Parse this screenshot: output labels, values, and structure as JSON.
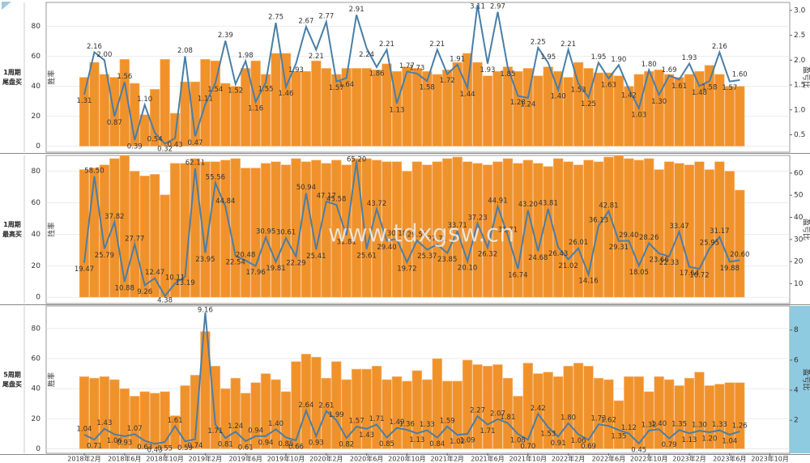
{
  "watermark": "www.tdxgsw.cn",
  "chart_data": [
    {
      "type": "bar",
      "panel_label": [
        "1周期",
        "尾盘买"
      ],
      "ylabel": "胜率",
      "y2label": "盈亏比",
      "ylim": [
        -4,
        96
      ],
      "yticks": [
        0,
        20,
        40,
        60,
        80
      ],
      "y2lim": [
        0.15,
        3.16
      ],
      "y2ticks": [
        0.5,
        {
          "value": 1,
          "label": "1.0"
        },
        1.5,
        {
          "value": 2,
          "label": "2.0"
        },
        2.5,
        {
          "value": 3,
          "label": "3.0"
        }
      ],
      "grid": true,
      "series": [
        {
          "color": "#f0922b",
          "values": [
            46,
            56,
            48,
            46,
            58,
            42,
            21,
            38,
            58,
            22,
            43,
            43,
            58,
            57,
            42,
            40,
            52,
            57,
            48,
            62,
            62,
            50,
            50,
            57,
            52,
            48,
            52,
            52,
            52,
            51,
            55,
            50,
            53,
            52,
            50,
            48,
            51,
            56,
            62,
            56,
            47,
            50,
            53,
            50,
            52,
            47,
            53,
            50,
            46,
            56,
            52,
            49,
            49,
            47,
            40,
            48,
            50,
            51,
            48,
            46,
            48,
            50,
            54,
            48,
            40,
            40
          ]
        },
        {
          "type": "line",
          "axis": "y2",
          "color": "#4a7ea6",
          "values": [
            1.31,
            2.16,
            2,
            0.87,
            1.56,
            0.39,
            1.1,
            0.54,
            0.32,
            0.43,
            2.08,
            0.47,
            1.11,
            1.54,
            2.39,
            1.52,
            1.98,
            1.16,
            1.55,
            2.75,
            1.46,
            1.93,
            2.67,
            2.21,
            2.77,
            1.57,
            1.64,
            2.91,
            2.24,
            1.86,
            2.21,
            1.13,
            1.77,
            1.73,
            1.58,
            2.21,
            1.72,
            1.91,
            1.44,
            3.11,
            1.93,
            2.97,
            1.85,
            1.28,
            1.24,
            2.25,
            1.95,
            1.4,
            2.21,
            1.53,
            1.25,
            1.95,
            1.63,
            1.9,
            1.42,
            1.03,
            1.8,
            1.3,
            1.69,
            1.61,
            1.93,
            1.48,
            1.58,
            2.16,
            1.57,
            1.6
          ],
          "value_labels": [
            "1.31",
            "2.16",
            "2.00",
            "0.87",
            "1.56",
            "0.39",
            "1.10",
            "0.54",
            "0.32",
            "0.43",
            "2.08",
            "0.47",
            "1.11",
            "1.54",
            "2.39",
            "1.52",
            "1.98",
            "1.16",
            "1.55",
            "2.75",
            "1.46",
            "1.93",
            "2.67",
            "2.21",
            "2.77",
            "1.57",
            "1.64",
            "2.91",
            "2.24",
            "1.86",
            "2.21",
            "1.13",
            "1.77",
            "1.73",
            "1.58",
            "2.21",
            "1.72",
            "1.91",
            "1.44",
            "3.11",
            "1.93",
            "2.97",
            "1.85",
            "1.28",
            "1.24",
            "2.25",
            "1.95",
            "1.40",
            "2.21",
            "1.53",
            "1.25",
            "1.95",
            "1.63",
            "1.90",
            "1.42",
            "1.03",
            "1.80",
            "1.30",
            "1.69",
            "1.61",
            "1.93",
            "1.48",
            "1.58",
            "2.16",
            "1.57",
            "1.60"
          ]
        }
      ]
    },
    {
      "type": "bar",
      "panel_label": [
        "1周期",
        "最高买"
      ],
      "ylabel": "胜率",
      "y2label": "盈亏比",
      "ylim": [
        -4,
        90
      ],
      "yticks": [
        0,
        20,
        40,
        60,
        80
      ],
      "y2lim": [
        1,
        68
      ],
      "y2ticks": [
        10,
        20,
        30,
        40,
        50,
        60
      ],
      "grid": true,
      "series": [
        {
          "color": "#f0922b",
          "values": [
            81,
            82,
            84,
            88,
            90,
            80,
            77,
            78,
            65,
            85,
            85,
            88,
            86,
            86,
            87,
            88,
            82,
            82,
            85,
            86,
            84,
            88,
            86,
            87,
            85,
            87,
            84,
            88,
            88,
            87,
            86,
            86,
            80,
            86,
            84,
            86,
            88,
            89,
            86,
            85,
            84,
            86,
            88,
            85,
            87,
            85,
            83,
            88,
            86,
            84,
            87,
            86,
            89,
            90,
            88,
            87,
            88,
            81,
            86,
            85,
            84,
            86,
            81,
            86,
            80,
            68
          ]
        },
        {
          "type": "line",
          "axis": "y2",
          "color": "#4a7ea6",
          "values": [
            19.47,
            58.5,
            25.79,
            37.82,
            10.88,
            27.77,
            9.26,
            12.47,
            4.38,
            10.11,
            13.19,
            62.11,
            23.95,
            55.56,
            44.84,
            22.54,
            20.48,
            17.96,
            30.95,
            19.81,
            30.61,
            22.29,
            50.94,
            25.41,
            47.17,
            45.58,
            31.81,
            65.2,
            25.61,
            43.72,
            29.4,
            30.18,
            19.72,
            29.51,
            25.37,
            27.71,
            23.85,
            33.71,
            20.1,
            37.23,
            26.32,
            44.91,
            31.71,
            16.74,
            43.2,
            24.68,
            43.81,
            26.43,
            21.02,
            26.01,
            14.16,
            36.13,
            42.81,
            29.31,
            29.4,
            18.05,
            28.26,
            23.66,
            22.33,
            33.47,
            17.64,
            16.72,
            25.95,
            31.17,
            19.88,
            20.6
          ],
          "value_labels": [
            "19.47",
            "58.50",
            "25.79",
            "37.82",
            "10.88",
            "27.77",
            "9.26",
            "12.47",
            "4.38",
            "10.11",
            "13.19",
            "62.11",
            "23.95",
            "55.56",
            "44.84",
            "22.54",
            "20.48",
            "17.96",
            "30.95",
            "19.81",
            "30.61",
            "22.29",
            "50.94",
            "25.41",
            "47.17",
            "45.58",
            "31.81",
            "65.20",
            "25.61",
            "43.72",
            "29.40",
            "30.18",
            "19.72",
            "29.51",
            "25.37",
            "27.71",
            "23.85",
            "33.71",
            "20.10",
            "37.23",
            "26.32",
            "44.91",
            "31.71",
            "16.74",
            "43.20",
            "24.68",
            "43.81",
            "26.43",
            "21.02",
            "26.01",
            "14.16",
            "36.13",
            "42.81",
            "29.31",
            "29.40",
            "18.05",
            "28.26",
            "23.66",
            "22.33",
            "33.47",
            "17.64",
            "16.72",
            "25.95",
            "31.17",
            "19.88",
            "20.60"
          ]
        }
      ]
    },
    {
      "type": "bar",
      "panel_label": [
        "5周期",
        "尾盘买"
      ],
      "ylabel": "胜率",
      "y2label": "盈亏比",
      "ylim": [
        -3,
        95
      ],
      "yticks": [
        0,
        20,
        40,
        60,
        80
      ],
      "y2lim": [
        -0.2,
        9.6
      ],
      "y2ticks": [
        2,
        4,
        6,
        8
      ],
      "grid": true,
      "categories": [
        "2018年2月",
        null,
        null,
        null,
        "2018年6月",
        null,
        null,
        null,
        "2018年10月",
        null,
        null,
        null,
        "2019年2月",
        null,
        null,
        null,
        "2019年6月",
        null,
        null,
        null,
        "2019年10月",
        null,
        null,
        null,
        "2020年2月",
        null,
        null,
        null,
        "2020年6月",
        null,
        null,
        null,
        "2020年10月",
        null,
        null,
        null,
        "2021年2月",
        null,
        null,
        null,
        "2021年6月",
        null,
        null,
        null,
        "2021年10月",
        null,
        null,
        null,
        "2022年2月",
        null,
        null,
        null,
        "2022年6月",
        null,
        null,
        null,
        "2022年10月",
        null,
        null,
        null,
        "2023年2月",
        null,
        null,
        null,
        "2023年6月",
        null,
        null,
        null,
        "2023年10月"
      ],
      "series": [
        {
          "color": "#f0922b",
          "values": [
            48,
            47,
            48,
            46,
            40,
            35,
            38,
            37,
            38,
            22,
            42,
            49,
            78,
            55,
            40,
            47,
            37,
            44,
            50,
            46,
            38,
            58,
            63,
            61,
            47,
            58,
            46,
            53,
            53,
            55,
            46,
            48,
            45,
            52,
            46,
            60,
            45,
            45,
            59,
            56,
            55,
            56,
            47,
            35,
            57,
            50,
            51,
            48,
            55,
            57,
            55,
            47,
            46,
            32,
            48,
            48,
            38,
            48,
            46,
            42,
            47,
            51,
            42,
            43,
            44,
            44,
            null,
            null,
            null
          ]
        },
        {
          "type": "line",
          "axis": "y2",
          "color": "#4a7ea6",
          "values": [
            1.04,
            0.71,
            1.43,
            1.06,
            0.93,
            1.07,
            0.63,
            0.43,
            0.55,
            1.61,
            0.59,
            0.74,
            9.16,
            1.71,
            0.81,
            1.24,
            0.61,
            0.94,
            0.94,
            1.4,
            0.85,
            0.66,
            2.64,
            0.93,
            2.61,
            1.99,
            0.82,
            1.57,
            1.43,
            1.71,
            0.85,
            1.49,
            1.36,
            1.13,
            1.33,
            0.84,
            1.59,
            1.02,
            1.09,
            2.27,
            1.71,
            2.07,
            1.81,
            1.08,
            0.7,
            2.42,
            1.53,
            0.91,
            1.8,
            1.06,
            0.69,
            1.73,
            1.62,
            1.35,
            1.12,
            0.45,
            1.32,
            1.4,
            0.79,
            1.35,
            1.13,
            1.3,
            1.2,
            1.33,
            1.04,
            1.26,
            null,
            null,
            null
          ],
          "value_labels": [
            "1.04",
            "0.71",
            "1.43",
            "1.06",
            "0.93",
            "1.07",
            "0.63",
            "0.43",
            "0.55",
            "1.61",
            "0.59",
            "0.74",
            "9.16",
            "1.71",
            "0.81",
            "1.24",
            "0.61",
            "0.94",
            "0.94",
            "1.40",
            "0.85",
            "0.66",
            "2.64",
            "0.93",
            "2.61",
            "1.99",
            "0.82",
            "1.57",
            "1.43",
            "1.71",
            "0.85",
            "1.49",
            "1.36",
            "1.13",
            "1.33",
            "0.84",
            "1.59",
            "1.02",
            "1.09",
            "2.27",
            "1.71",
            "2.07",
            "1.81",
            "1.08",
            "0.70",
            "2.42",
            "1.53",
            "0.91",
            "1.80",
            "1.06",
            "0.69",
            "1.73",
            "1.62",
            "1.35",
            "1.12",
            "0.45",
            "1.32",
            "1.40",
            "0.79",
            "1.35",
            "1.13",
            "1.30",
            "1.20",
            "1.33",
            "1.04",
            "1.26",
            null,
            null,
            null
          ]
        }
      ]
    }
  ]
}
